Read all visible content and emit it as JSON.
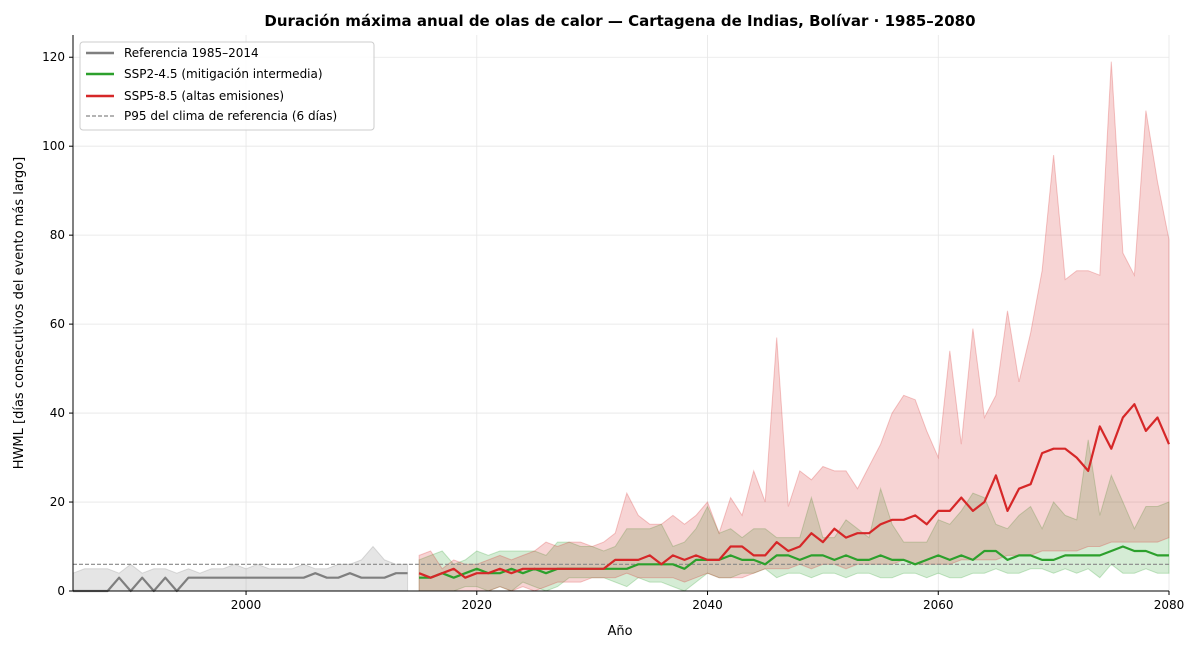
{
  "chart_data": {
    "type": "line",
    "title": "Duración máxima anual de olas de calor — Cartagena de Indias, Bolívar · 1985–2080",
    "xlabel": "Año",
    "ylabel": "HWML [días consecutivos del evento más largo]",
    "xlim": [
      1985,
      2080
    ],
    "ylim": [
      0,
      125
    ],
    "xticks": [
      2000,
      2020,
      2040,
      2060,
      2080
    ],
    "yticks": [
      0,
      20,
      40,
      60,
      80,
      100,
      120
    ],
    "grid": true,
    "legend_position": "top-left",
    "threshold": {
      "label": "P95 del clima de referencia (6 días)",
      "value": 6,
      "color": "#888888"
    },
    "series": [
      {
        "name": "Referencia 1985–2014",
        "color": "#7f7f7f",
        "x": [
          1985,
          1986,
          1987,
          1988,
          1989,
          1990,
          1991,
          1992,
          1993,
          1994,
          1995,
          1996,
          1997,
          1998,
          1999,
          2000,
          2001,
          2002,
          2003,
          2004,
          2005,
          2006,
          2007,
          2008,
          2009,
          2010,
          2011,
          2012,
          2013,
          2014
        ],
        "y": [
          0,
          0,
          0,
          0,
          3,
          0,
          3,
          0,
          3,
          0,
          3,
          3,
          3,
          3,
          3,
          3,
          3,
          3,
          3,
          3,
          3,
          4,
          3,
          3,
          4,
          3,
          3,
          3,
          4,
          4
        ],
        "band_low": [
          0,
          0,
          0,
          0,
          0,
          0,
          0,
          0,
          0,
          0,
          0,
          0,
          0,
          0,
          0,
          0,
          0,
          0,
          0,
          0,
          0,
          0,
          0,
          0,
          0,
          0,
          0,
          0,
          0,
          0
        ],
        "band_high": [
          4,
          5,
          5,
          5,
          4,
          6,
          4,
          5,
          5,
          4,
          5,
          4,
          5,
          5,
          6,
          5,
          6,
          5,
          5,
          5,
          6,
          5,
          5,
          6,
          6,
          7,
          10,
          7,
          6,
          6
        ]
      },
      {
        "name": "SSP2-4.5 (mitigación intermedia)",
        "color": "#2ca02c",
        "x": [
          2015,
          2016,
          2017,
          2018,
          2019,
          2020,
          2021,
          2022,
          2023,
          2024,
          2025,
          2026,
          2027,
          2028,
          2029,
          2030,
          2031,
          2032,
          2033,
          2034,
          2035,
          2036,
          2037,
          2038,
          2039,
          2040,
          2041,
          2042,
          2043,
          2044,
          2045,
          2046,
          2047,
          2048,
          2049,
          2050,
          2051,
          2052,
          2053,
          2054,
          2055,
          2056,
          2057,
          2058,
          2059,
          2060,
          2061,
          2062,
          2063,
          2064,
          2065,
          2066,
          2067,
          2068,
          2069,
          2070,
          2071,
          2072,
          2073,
          2074,
          2075,
          2076,
          2077,
          2078,
          2079,
          2080
        ],
        "y": [
          3,
          3,
          4,
          3,
          4,
          5,
          4,
          4,
          5,
          4,
          5,
          4,
          5,
          5,
          5,
          5,
          5,
          5,
          5,
          6,
          6,
          6,
          6,
          5,
          7,
          7,
          7,
          8,
          7,
          7,
          6,
          8,
          8,
          7,
          8,
          8,
          7,
          8,
          7,
          7,
          8,
          7,
          7,
          6,
          7,
          8,
          7,
          8,
          7,
          9,
          9,
          7,
          8,
          8,
          7,
          7,
          8,
          8,
          8,
          8,
          9,
          10,
          9,
          9,
          8,
          8
        ],
        "band_low": [
          0,
          0,
          0,
          0,
          1,
          1,
          0,
          1,
          0,
          2,
          1,
          0,
          1,
          3,
          3,
          3,
          3,
          2,
          1,
          3,
          2,
          2,
          1,
          0,
          2,
          4,
          3,
          3,
          4,
          4,
          5,
          3,
          4,
          4,
          3,
          4,
          4,
          3,
          4,
          4,
          3,
          3,
          4,
          4,
          3,
          4,
          3,
          3,
          4,
          4,
          5,
          4,
          4,
          5,
          5,
          4,
          5,
          4,
          5,
          3,
          6,
          4,
          4,
          5,
          4,
          4
        ],
        "band_high": [
          7,
          8,
          9,
          6,
          7,
          9,
          8,
          9,
          9,
          9,
          9,
          8,
          11,
          11,
          10,
          10,
          9,
          10,
          14,
          14,
          14,
          15,
          10,
          11,
          14,
          19,
          13,
          14,
          12,
          14,
          14,
          12,
          12,
          12,
          21,
          12,
          12,
          16,
          14,
          12,
          23,
          15,
          11,
          11,
          11,
          16,
          15,
          18,
          22,
          21,
          15,
          14,
          17,
          19,
          14,
          20,
          17,
          16,
          34,
          17,
          26,
          20,
          14,
          19,
          19,
          20
        ]
      },
      {
        "name": "SSP5-8.5 (altas emisiones)",
        "color": "#d62728",
        "x": [
          2015,
          2016,
          2017,
          2018,
          2019,
          2020,
          2021,
          2022,
          2023,
          2024,
          2025,
          2026,
          2027,
          2028,
          2029,
          2030,
          2031,
          2032,
          2033,
          2034,
          2035,
          2036,
          2037,
          2038,
          2039,
          2040,
          2041,
          2042,
          2043,
          2044,
          2045,
          2046,
          2047,
          2048,
          2049,
          2050,
          2051,
          2052,
          2053,
          2054,
          2055,
          2056,
          2057,
          2058,
          2059,
          2060,
          2061,
          2062,
          2063,
          2064,
          2065,
          2066,
          2067,
          2068,
          2069,
          2070,
          2071,
          2072,
          2073,
          2074,
          2075,
          2076,
          2077,
          2078,
          2079,
          2080
        ],
        "y": [
          4,
          3,
          4,
          5,
          3,
          4,
          4,
          5,
          4,
          5,
          5,
          5,
          5,
          5,
          5,
          5,
          5,
          7,
          7,
          7,
          8,
          6,
          8,
          7,
          8,
          7,
          7,
          10,
          10,
          8,
          8,
          11,
          9,
          10,
          13,
          11,
          14,
          12,
          13,
          13,
          15,
          16,
          16,
          17,
          15,
          18,
          18,
          21,
          18,
          20,
          26,
          18,
          23,
          24,
          31,
          32,
          32,
          30,
          27,
          37,
          32,
          39,
          42,
          36,
          39,
          33
        ],
        "band_low": [
          0,
          0,
          0,
          0,
          0,
          0,
          0,
          1,
          0,
          1,
          0,
          1,
          2,
          2,
          2,
          3,
          3,
          3,
          4,
          3,
          3,
          3,
          3,
          2,
          3,
          4,
          3,
          3,
          3,
          4,
          5,
          5,
          5,
          6,
          5,
          6,
          6,
          5,
          6,
          6,
          6,
          6,
          7,
          6,
          6,
          6,
          6,
          7,
          7,
          7,
          7,
          8,
          8,
          8,
          9,
          9,
          9,
          9,
          10,
          10,
          11,
          11,
          11,
          11,
          11,
          12
        ],
        "band_high": [
          8,
          9,
          5,
          7,
          6,
          6,
          7,
          8,
          7,
          8,
          9,
          11,
          10,
          11,
          11,
          10,
          11,
          13,
          22,
          17,
          15,
          15,
          17,
          15,
          17,
          20,
          13,
          21,
          17,
          27,
          20,
          57,
          19,
          27,
          25,
          28,
          27,
          27,
          23,
          28,
          33,
          40,
          44,
          43,
          36,
          30,
          54,
          33,
          59,
          39,
          44,
          63,
          47,
          58,
          72,
          98,
          70,
          72,
          72,
          71,
          119,
          76,
          71,
          108,
          92,
          79
        ]
      }
    ]
  }
}
